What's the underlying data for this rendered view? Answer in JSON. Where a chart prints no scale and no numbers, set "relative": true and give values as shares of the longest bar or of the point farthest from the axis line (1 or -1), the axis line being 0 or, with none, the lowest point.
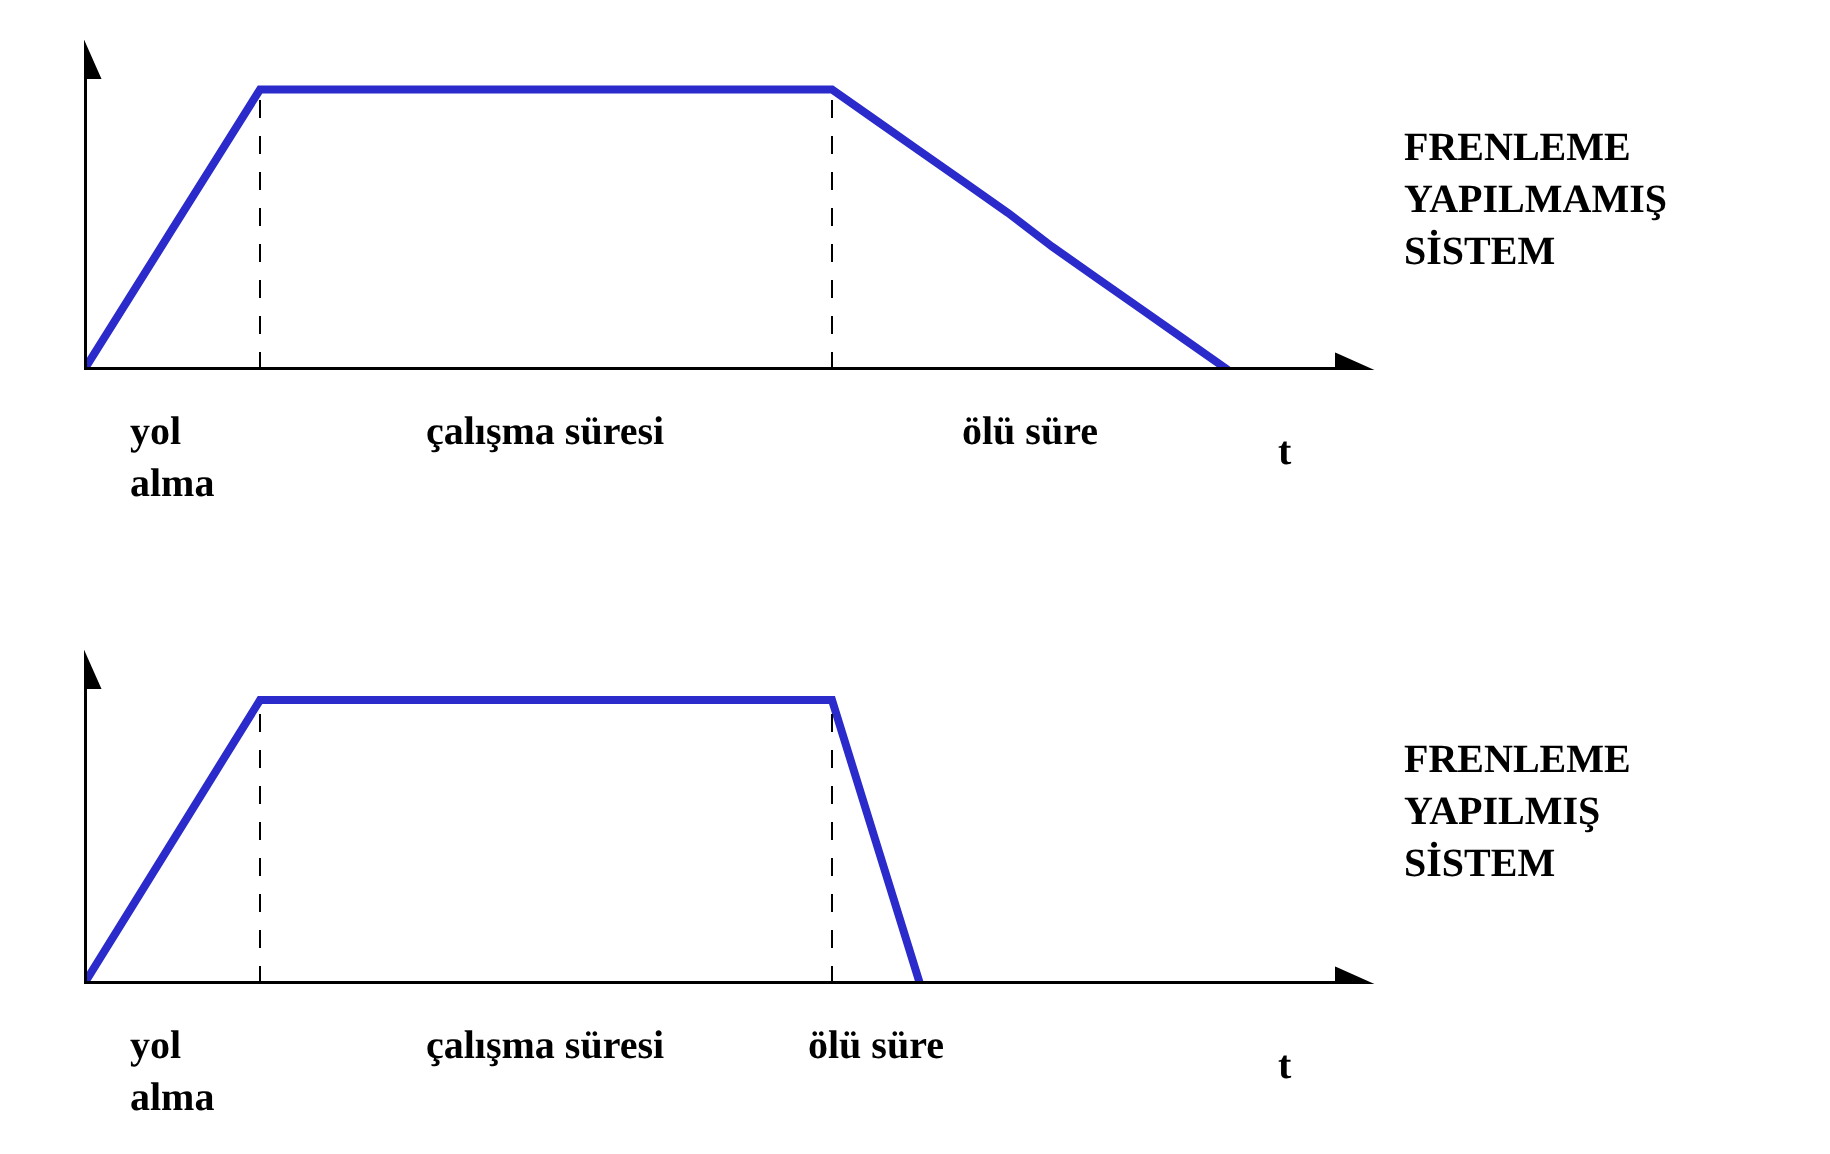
{
  "chart_data": [
    {
      "type": "line",
      "xlabel": "t",
      "relative": true,
      "marker": "none",
      "line_style": "solid",
      "categories": [
        null,
        null,
        null,
        null,
        null,
        null,
        null,
        null,
        null,
        null,
        null,
        null,
        null,
        null,
        null,
        null,
        null,
        null,
        null,
        null,
        null,
        null,
        null,
        null,
        null,
        null,
        null,
        null,
        null,
        null
      ],
      "series": [
        {
          "color": "#2b2bcc",
          "values": [
            0,
            0.25,
            0.5,
            0.75,
            1,
            1,
            1,
            1,
            1,
            1,
            1,
            1,
            1,
            1,
            1,
            1,
            1,
            1,
            0.89,
            0.78,
            0.67,
            0.56,
            0.44,
            0.33,
            0.22,
            0.11,
            0,
            null,
            null,
            null
          ]
        }
      ],
      "annotations": [
        "yol\nalma",
        "çalışma süresi",
        "ölü süre",
        "FRENLEME\nYAPILMAMIŞ\nSİSTEM"
      ]
    },
    {
      "type": "line",
      "xlabel": "t",
      "relative": true,
      "marker": "none",
      "line_style": "solid",
      "categories": [
        null,
        null,
        null,
        null,
        null,
        null,
        null,
        null,
        null,
        null,
        null,
        null,
        null,
        null,
        null,
        null,
        null,
        null,
        null,
        null,
        null,
        null,
        null,
        null,
        null,
        null,
        null,
        null,
        null,
        null
      ],
      "series": [
        {
          "color": "#2b2bcc",
          "values": [
            0,
            0.25,
            0.5,
            0.75,
            1,
            1,
            1,
            1,
            1,
            1,
            1,
            1,
            1,
            1,
            1,
            1,
            1,
            1,
            0.5,
            0,
            null,
            null,
            null,
            null,
            null,
            null,
            null,
            null,
            null,
            null
          ]
        }
      ],
      "annotations": [
        "yol\nalma",
        "çalışma süresi",
        "ölü süre",
        "FRENLEME\nYAPILMIŞ\nSİSTEM"
      ]
    }
  ]
}
